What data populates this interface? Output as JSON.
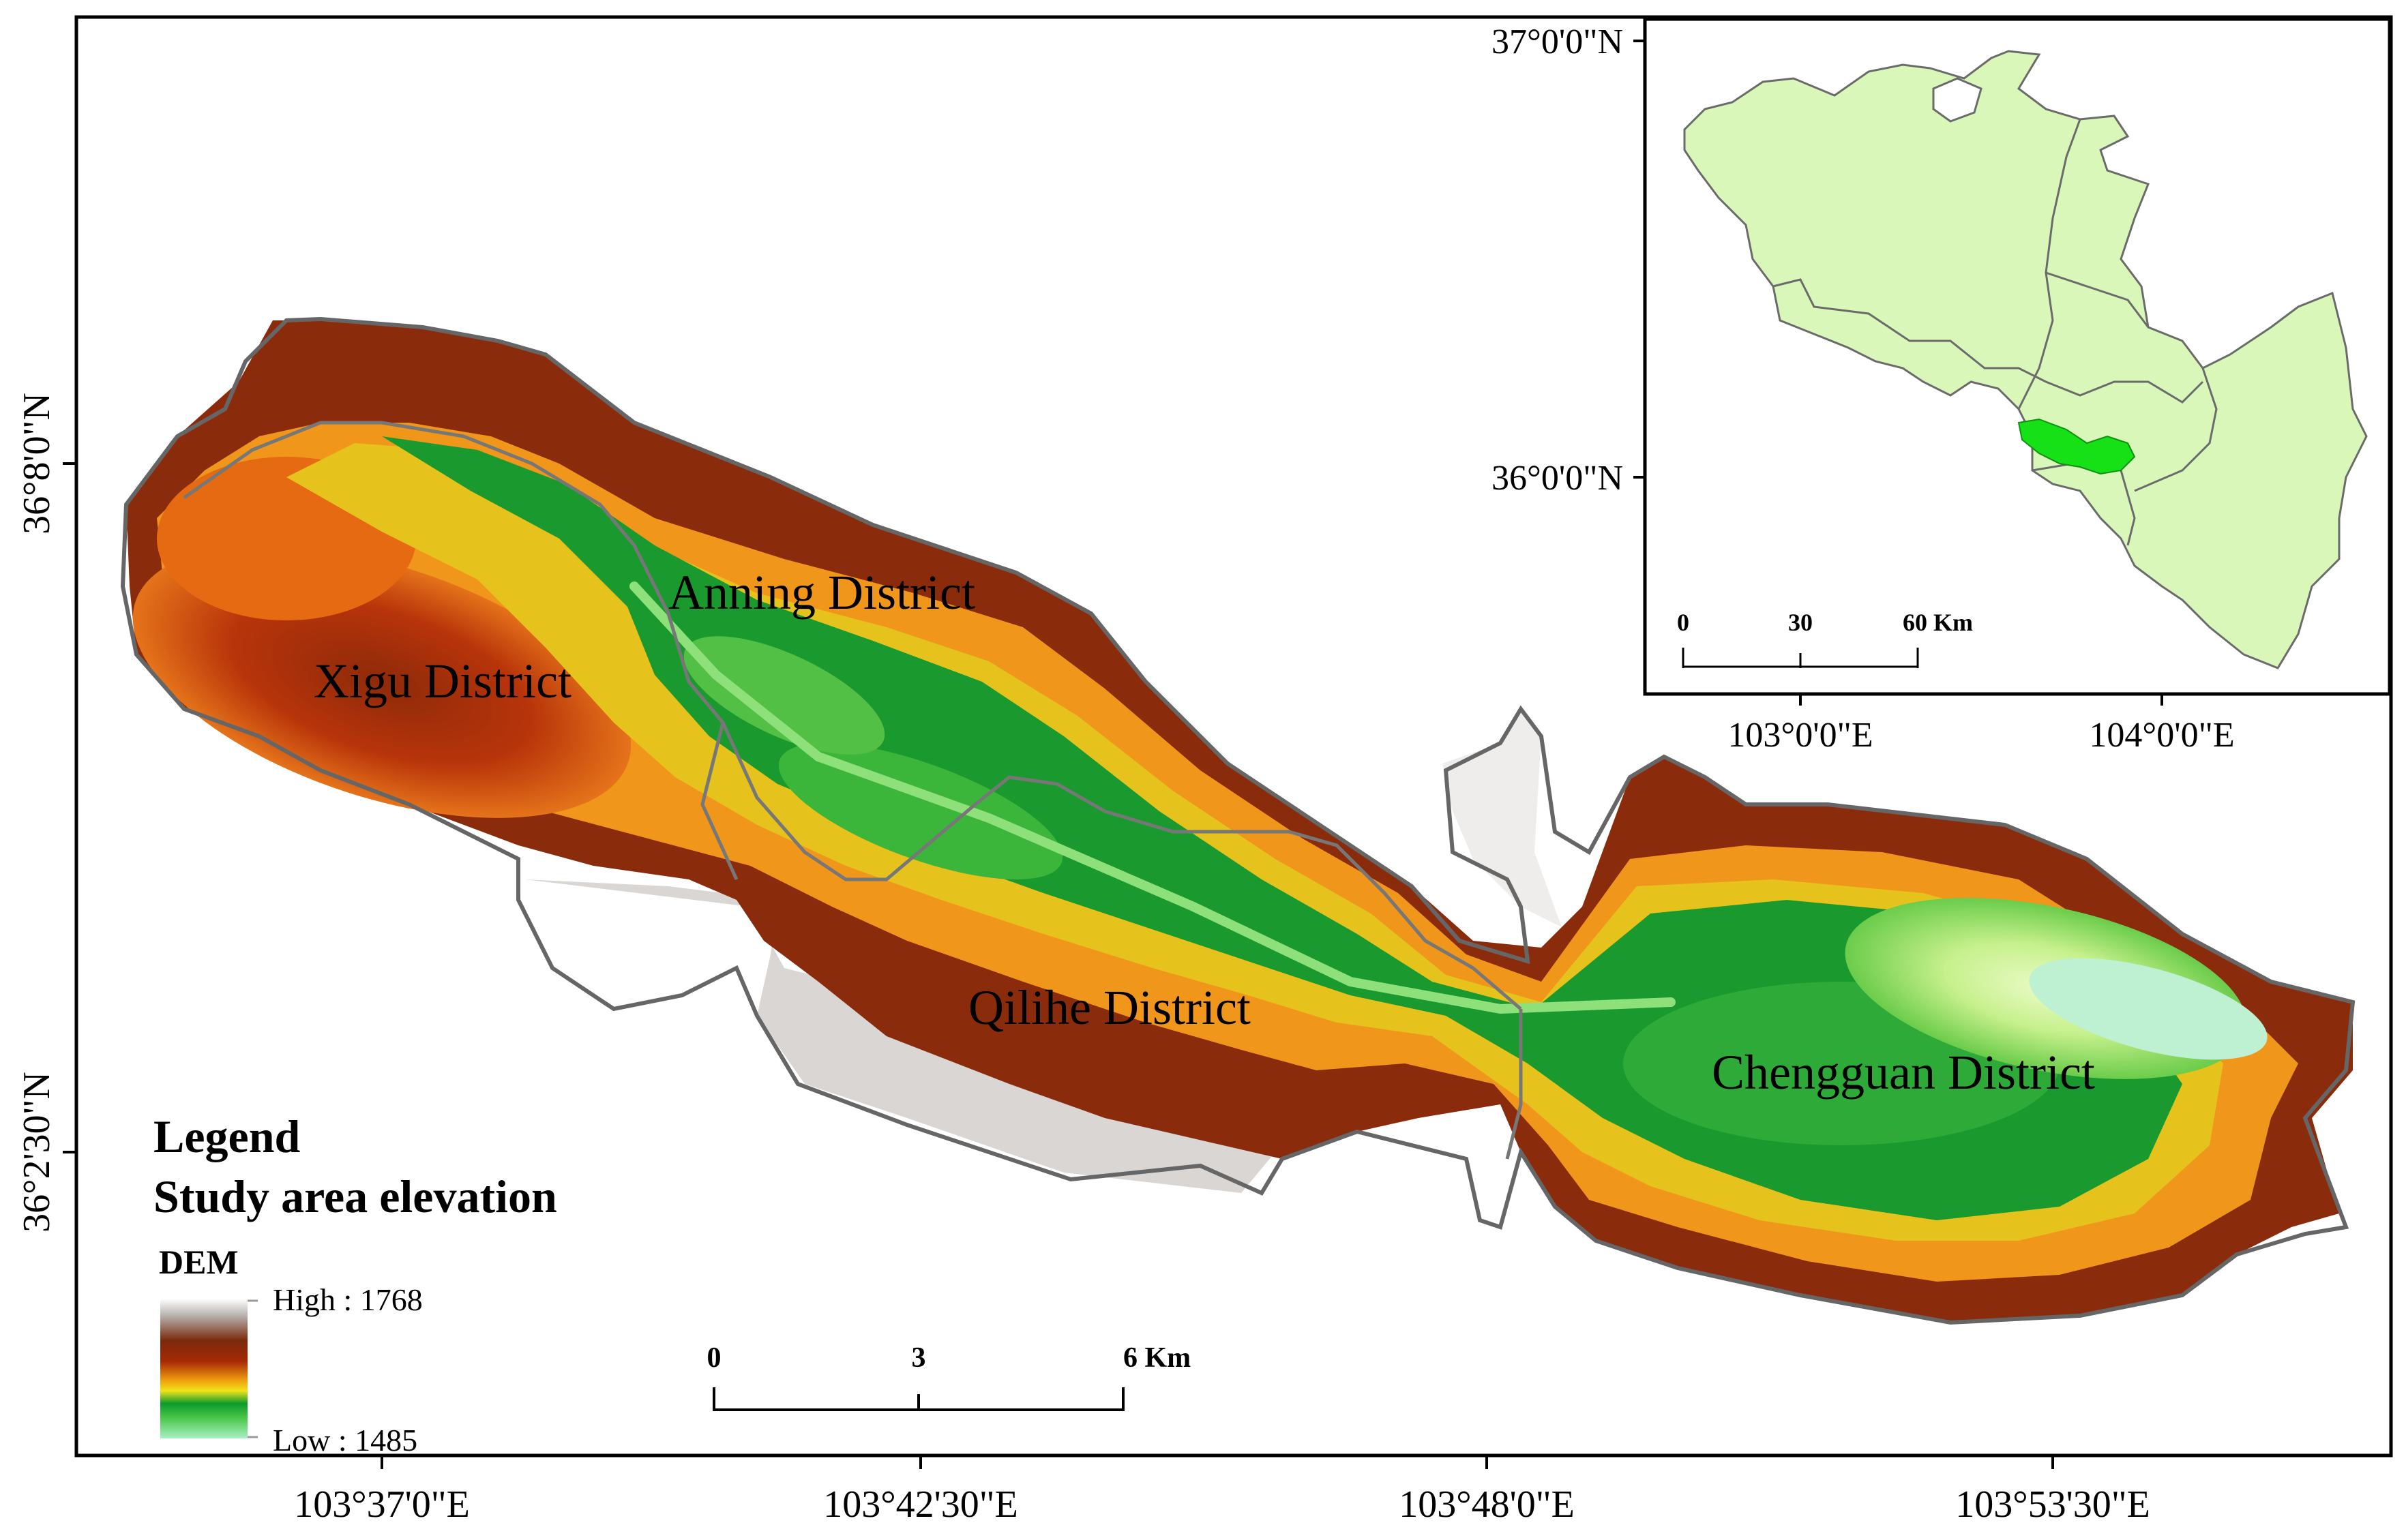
{
  "main_map": {
    "x_ticks": [
      "103°37'0\"E",
      "103°42'30\"E",
      "103°48'0\"E",
      "103°53'30\"E"
    ],
    "y_ticks": [
      "36°8'0\"N",
      "36°2'30\"N"
    ],
    "districts": {
      "xigu": "Xigu District",
      "anning": "Anning District",
      "qilihe": "Qilihe District",
      "chengguan": "Chengguan District"
    }
  },
  "legend": {
    "title": "Legend",
    "subtitle": "Study area elevation",
    "dem_label": "DEM",
    "high_label": "High : 1768",
    "low_label": "Low : 1485",
    "colors": [
      "#ffffff",
      "#b0aeae",
      "#7a2a0c",
      "#a62a05",
      "#f09a10",
      "#f2e21a",
      "#0c9a2a",
      "#48c648",
      "#a9f0c5"
    ]
  },
  "scale_bar": {
    "labels": [
      "0",
      "3",
      "6 Km"
    ]
  },
  "inset": {
    "x_ticks": [
      "103°0'0\"E",
      "104°0'0\"E"
    ],
    "y_ticks": [
      "37°0'0\"N",
      "36°0'0\"N"
    ],
    "scale_labels": [
      "0",
      "30",
      "60 Km"
    ],
    "region_color": "#d9f7b8",
    "study_color": "#16e016"
  }
}
